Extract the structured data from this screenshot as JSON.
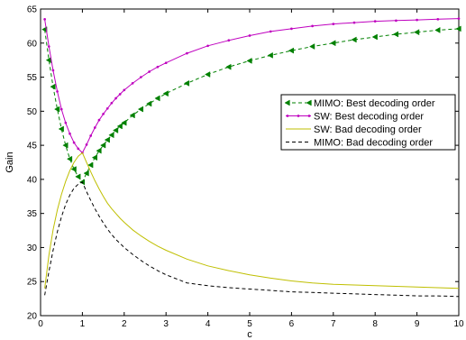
{
  "chart_data": {
    "type": "line",
    "title": "",
    "xlabel": "c",
    "ylabel": "Gain",
    "xlim": [
      0,
      10
    ],
    "ylim": [
      20,
      65
    ],
    "xticks": [
      0,
      1,
      2,
      3,
      4,
      5,
      6,
      7,
      8,
      9,
      10
    ],
    "yticks": [
      20,
      25,
      30,
      35,
      40,
      45,
      50,
      55,
      60,
      65
    ],
    "grid": false,
    "legend_placement": "center-right",
    "x": [
      0.1,
      0.2,
      0.3,
      0.4,
      0.5,
      0.6,
      0.7,
      0.8,
      0.9,
      1.0,
      1.1,
      1.2,
      1.3,
      1.4,
      1.5,
      1.6,
      1.7,
      1.8,
      1.9,
      2.0,
      2.2,
      2.4,
      2.6,
      2.8,
      3.0,
      3.5,
      4.0,
      4.5,
      5.0,
      5.5,
      6.0,
      6.5,
      7.0,
      7.5,
      8.0,
      8.5,
      9.0,
      9.5,
      10.0
    ],
    "series": [
      {
        "name": "MIMO: Best decoding order",
        "color": "#008000",
        "style": "dashed-triangle",
        "values": [
          62.0,
          57.5,
          53.6,
          50.3,
          47.4,
          45.0,
          43.0,
          41.5,
          40.4,
          39.6,
          40.9,
          42.1,
          43.2,
          44.2,
          45.0,
          45.8,
          46.5,
          47.2,
          47.8,
          48.3,
          49.4,
          50.3,
          51.1,
          51.9,
          52.6,
          54.1,
          55.4,
          56.5,
          57.4,
          58.2,
          58.9,
          59.5,
          60.0,
          60.5,
          60.9,
          61.3,
          61.6,
          61.9,
          62.1
        ]
      },
      {
        "name": "SW: Best decoding order",
        "color": "#bf00bf",
        "style": "solid-dot",
        "values": [
          63.5,
          59.5,
          56.0,
          52.9,
          50.3,
          48.3,
          46.7,
          45.4,
          44.5,
          43.9,
          45.1,
          46.4,
          47.6,
          48.7,
          49.6,
          50.4,
          51.2,
          51.9,
          52.5,
          53.1,
          54.1,
          55.0,
          55.8,
          56.5,
          57.1,
          58.5,
          59.6,
          60.4,
          61.1,
          61.7,
          62.1,
          62.5,
          62.8,
          63.0,
          63.2,
          63.3,
          63.4,
          63.5,
          63.6
        ]
      },
      {
        "name": "SW: Bad decoding order",
        "color": "#bfbf00",
        "style": "solid",
        "values": [
          24.0,
          28.9,
          32.6,
          35.5,
          37.8,
          39.7,
          41.3,
          42.5,
          43.4,
          43.9,
          42.5,
          41.1,
          39.8,
          38.6,
          37.5,
          36.5,
          35.7,
          35.0,
          34.3,
          33.7,
          32.6,
          31.7,
          30.9,
          30.2,
          29.6,
          28.3,
          27.3,
          26.6,
          26.0,
          25.5,
          25.1,
          24.8,
          24.6,
          24.5,
          24.4,
          24.3,
          24.2,
          24.1,
          24.0
        ]
      },
      {
        "name": "MIMO: Bad decoding order",
        "color": "#000000",
        "style": "dashed",
        "values": [
          23.0,
          26.5,
          29.6,
          32.3,
          34.5,
          36.3,
          37.7,
          38.7,
          39.3,
          39.6,
          38.2,
          36.9,
          35.7,
          34.6,
          33.6,
          32.7,
          31.9,
          31.2,
          30.6,
          30.0,
          29.0,
          28.1,
          27.3,
          26.6,
          26.0,
          24.8,
          24.4,
          24.1,
          23.9,
          23.7,
          23.5,
          23.4,
          23.3,
          23.2,
          23.1,
          23.0,
          22.9,
          22.9,
          22.8
        ]
      }
    ]
  }
}
